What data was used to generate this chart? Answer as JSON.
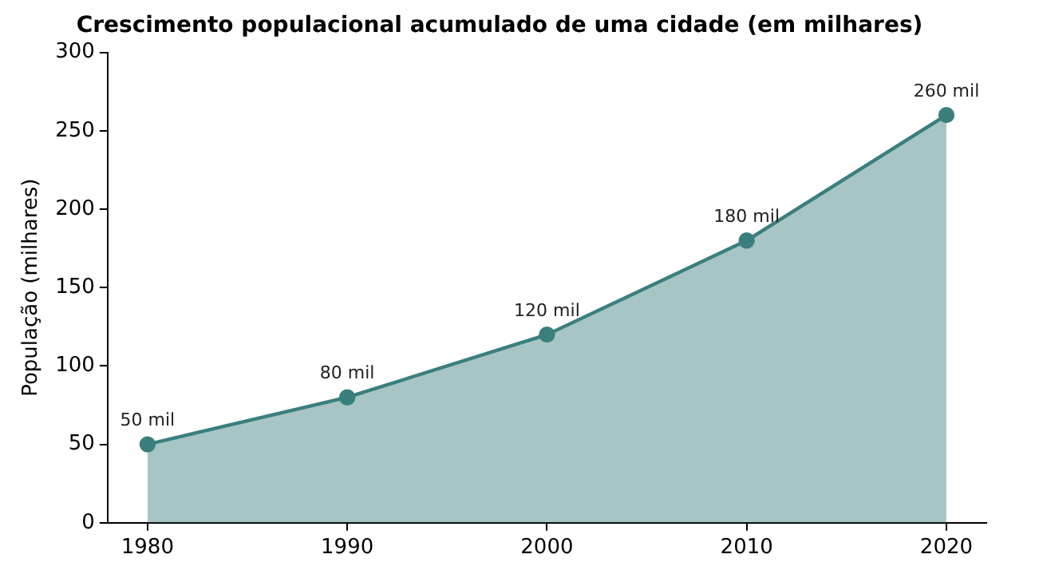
{
  "chart_data": {
    "type": "area",
    "title": "Crescimento populacional acumulado de uma cidade (em milhares)",
    "ylabel": "População (milhares)",
    "x": [
      1980,
      1990,
      2000,
      2010,
      2020
    ],
    "series": [
      {
        "color": "#3a7f7d",
        "values": [
          50,
          80,
          120,
          180,
          260
        ],
        "value_labels": [
          "50 mil",
          "80 mil",
          "120 mil",
          "180 mil",
          "260 mil"
        ]
      }
    ],
    "xlim": [
      1978,
      2022
    ],
    "xticks": [
      1980,
      1990,
      2000,
      2010,
      2020
    ],
    "ylim": [
      0,
      300
    ],
    "yticks": [
      0,
      50,
      100,
      150,
      200,
      250,
      300
    ],
    "grid": false,
    "marker": "circle"
  }
}
